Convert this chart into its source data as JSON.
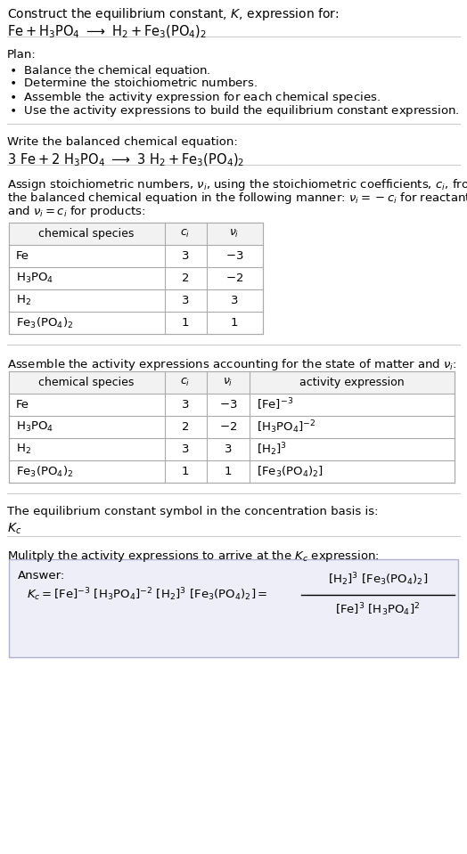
{
  "bg_color": "#ffffff",
  "text_color": "#000000",
  "fs": 9.5,
  "ft": 10.0,
  "table1_rows": [
    [
      "Fe",
      "3",
      "$-3$"
    ],
    [
      "$\\mathrm{H_3PO_4}$",
      "2",
      "$-2$"
    ],
    [
      "$\\mathrm{H_2}$",
      "3",
      "3"
    ],
    [
      "$\\mathrm{Fe_3(PO_4)_2}$",
      "1",
      "1"
    ]
  ],
  "table2_rows": [
    [
      "Fe",
      "3",
      "$-3$",
      "$[\\mathrm{Fe}]^{-3}$"
    ],
    [
      "$\\mathrm{H_3PO_4}$",
      "2",
      "$-2$",
      "$[\\mathrm{H_3PO_4}]^{-2}$"
    ],
    [
      "$\\mathrm{H_2}$",
      "3",
      "3",
      "$[\\mathrm{H_2}]^3$"
    ],
    [
      "$\\mathrm{Fe_3(PO_4)_2}$",
      "1",
      "1",
      "$[\\mathrm{Fe_3(PO_4)_2}]$"
    ]
  ]
}
